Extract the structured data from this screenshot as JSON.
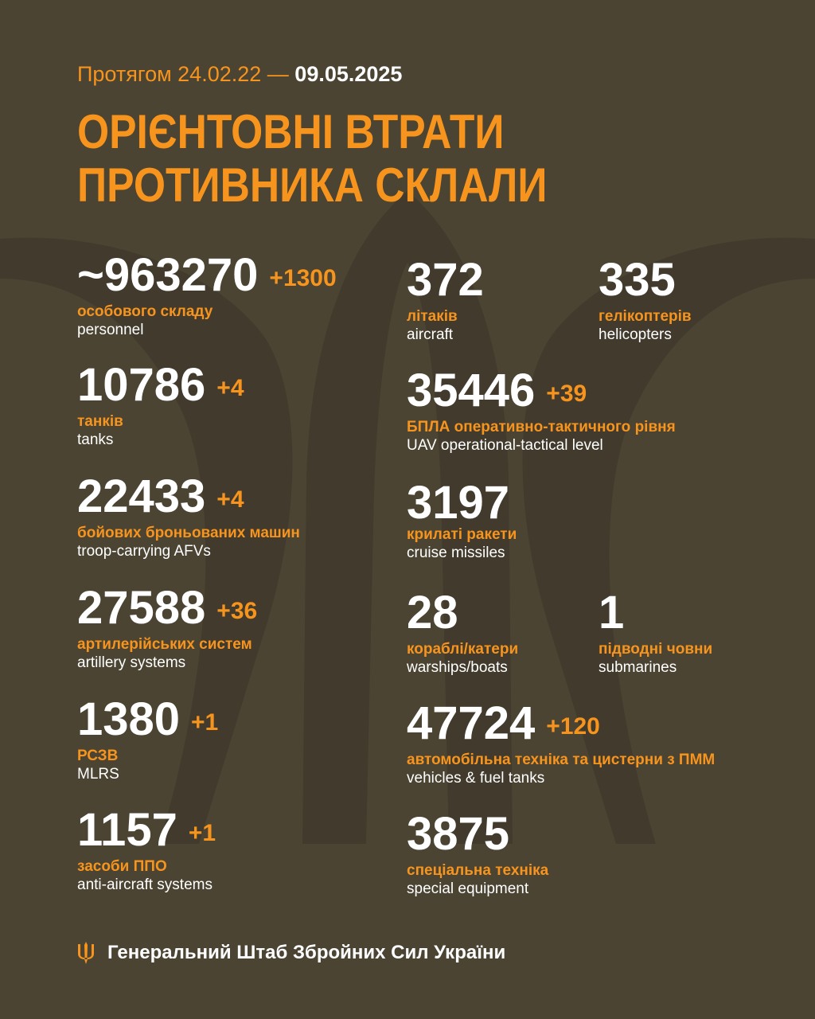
{
  "header": {
    "period_prefix": "Протягом 24.02.22 —",
    "period_end": "09.05.2025",
    "title_line1": "ОРІЄНТОВНІ ВТРАТИ",
    "title_line2": "ПРОТИВНИКА СКЛАЛИ"
  },
  "colors": {
    "background": "#4b4433",
    "accent": "#f7941d",
    "text": "#ffffff"
  },
  "stats": {
    "personnel": {
      "value": "~963270",
      "delta": "+1300",
      "label_ua": "особового складу",
      "label_en": "personnel"
    },
    "tanks": {
      "value": "10786",
      "delta": "+4",
      "label_ua": "танків",
      "label_en": "tanks"
    },
    "afv": {
      "value": "22433",
      "delta": "+4",
      "label_ua": "бойових броньованих машин",
      "label_en": "troop-carrying AFVs"
    },
    "artillery": {
      "value": "27588",
      "delta": "+36",
      "label_ua": "артилерійських систем",
      "label_en": "artillery systems"
    },
    "mlrs": {
      "value": "1380",
      "delta": "+1",
      "label_ua": "РСЗВ",
      "label_en": "MLRS"
    },
    "anti_aircraft": {
      "value": "1157",
      "delta": "+1",
      "label_ua": "засоби ППО",
      "label_en": "anti-aircraft systems"
    },
    "aircraft": {
      "value": "372",
      "label_ua": "літаків",
      "label_en": "aircraft"
    },
    "helicopters": {
      "value": "335",
      "label_ua": "гелікоптерів",
      "label_en": "helicopters"
    },
    "uav": {
      "value": "35446",
      "delta": "+39",
      "label_ua": "БПЛА оперативно-тактичного рівня",
      "label_en": "UAV operational-tactical level"
    },
    "cruise_missiles": {
      "value": "3197",
      "label_ua": "крилаті ракети",
      "label_en": "cruise missiles"
    },
    "warships": {
      "value": "28",
      "label_ua": "кораблі/катери",
      "label_en": "warships/boats"
    },
    "submarines": {
      "value": "1",
      "label_ua": "підводні човни",
      "label_en": "submarines"
    },
    "vehicles": {
      "value": "47724",
      "delta": "+120",
      "label_ua": "автомобільна техніка та цистерни з ПММ",
      "label_en": "vehicles & fuel tanks"
    },
    "special_equipment": {
      "value": "3875",
      "label_ua": "спеціальна техніка",
      "label_en": "special equipment"
    }
  },
  "footer": {
    "icon": "trident-icon",
    "text": "Генеральний Штаб Збройних Сил України"
  }
}
